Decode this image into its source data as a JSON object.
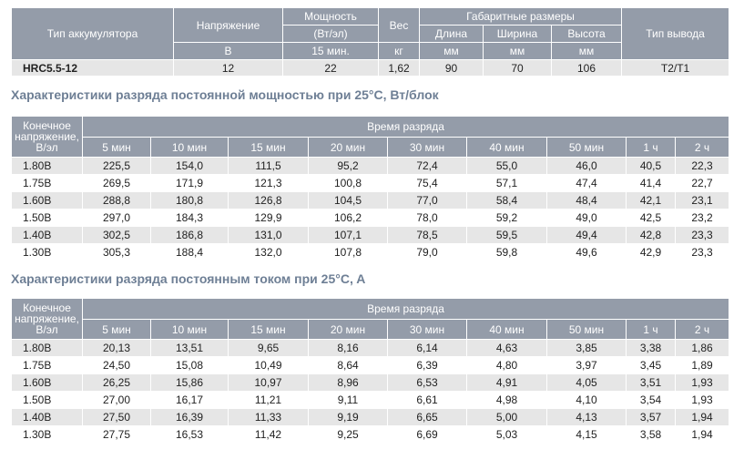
{
  "spec_table": {
    "row1": [
      "Тип аккумулятора",
      "Напряжение",
      "Мощность",
      "Вес",
      "Габаритные размеры",
      "Тип вывода"
    ],
    "row2": [
      "(Вт/эл)",
      "Длина",
      "Ширина",
      "Высота"
    ],
    "row3": [
      "В",
      "15 мин.",
      "кг",
      "мм",
      "мм",
      "мм"
    ],
    "data": [
      "HRC5.5-12",
      "12",
      "22",
      "1,62",
      "90",
      "70",
      "106",
      "T2/T1"
    ]
  },
  "power_table": {
    "title": "Характеристики разряда постоянной мощностью при 25°C, Вт/блок",
    "corner": "Конечное напряжение, В/эл",
    "group": "Время разряда",
    "columns": [
      "5 мин",
      "10 мин",
      "15 мин",
      "20 мин",
      "30 мин",
      "40 мин",
      "50 мин",
      "1 ч",
      "2 ч"
    ],
    "rows": [
      {
        "label": "1.80В",
        "values": [
          "225,5",
          "154,0",
          "111,5",
          "95,2",
          "72,4",
          "55,0",
          "46,0",
          "40,5",
          "22,3"
        ]
      },
      {
        "label": "1.75В",
        "values": [
          "269,5",
          "171,9",
          "121,3",
          "100,8",
          "75,4",
          "57,1",
          "47,4",
          "41,4",
          "22,7"
        ]
      },
      {
        "label": "1.60В",
        "values": [
          "288,8",
          "180,8",
          "126,8",
          "104,5",
          "77,0",
          "58,4",
          "48,4",
          "42,1",
          "23,1"
        ]
      },
      {
        "label": "1.50В",
        "values": [
          "297,0",
          "184,3",
          "129,9",
          "106,2",
          "78,0",
          "59,2",
          "49,0",
          "42,5",
          "23,2"
        ]
      },
      {
        "label": "1.40В",
        "values": [
          "302,5",
          "186,8",
          "131,0",
          "107,1",
          "78,5",
          "59,5",
          "49,4",
          "42,8",
          "23,3"
        ]
      },
      {
        "label": "1.30В",
        "values": [
          "305,3",
          "188,4",
          "132,0",
          "107,8",
          "79,0",
          "59,8",
          "49,6",
          "42,9",
          "23,3"
        ]
      }
    ]
  },
  "current_table": {
    "title": "Характеристики разряда постоянным током при 25°C, A",
    "corner": "Конечное напряжение, В/эл",
    "group": "Время разряда",
    "columns": [
      "5 мин",
      "10 мин",
      "15 мин",
      "20 мин",
      "30 мин",
      "40 мин",
      "50 мин",
      "1 ч",
      "2 ч"
    ],
    "rows": [
      {
        "label": "1.80В",
        "values": [
          "20,13",
          "13,51",
          "9,65",
          "8,16",
          "6,14",
          "4,63",
          "3,85",
          "3,38",
          "1,86"
        ]
      },
      {
        "label": "1.75В",
        "values": [
          "24,50",
          "15,08",
          "10,49",
          "8,64",
          "6,39",
          "4,80",
          "3,97",
          "3,45",
          "1,89"
        ]
      },
      {
        "label": "1.60В",
        "values": [
          "26,25",
          "15,86",
          "10,97",
          "8,96",
          "6,53",
          "4,91",
          "4,05",
          "3,51",
          "1,93"
        ]
      },
      {
        "label": "1.50В",
        "values": [
          "27,00",
          "16,17",
          "11,21",
          "9,11",
          "6,61",
          "4,98",
          "4,10",
          "3,54",
          "1,93"
        ]
      },
      {
        "label": "1.40В",
        "values": [
          "27,50",
          "16,39",
          "11,33",
          "9,19",
          "6,65",
          "5,00",
          "4,13",
          "3,57",
          "1,94"
        ]
      },
      {
        "label": "1.30В",
        "values": [
          "27,75",
          "16,53",
          "11,42",
          "9,25",
          "6,69",
          "5,03",
          "4,15",
          "3,58",
          "1,94"
        ]
      }
    ]
  }
}
